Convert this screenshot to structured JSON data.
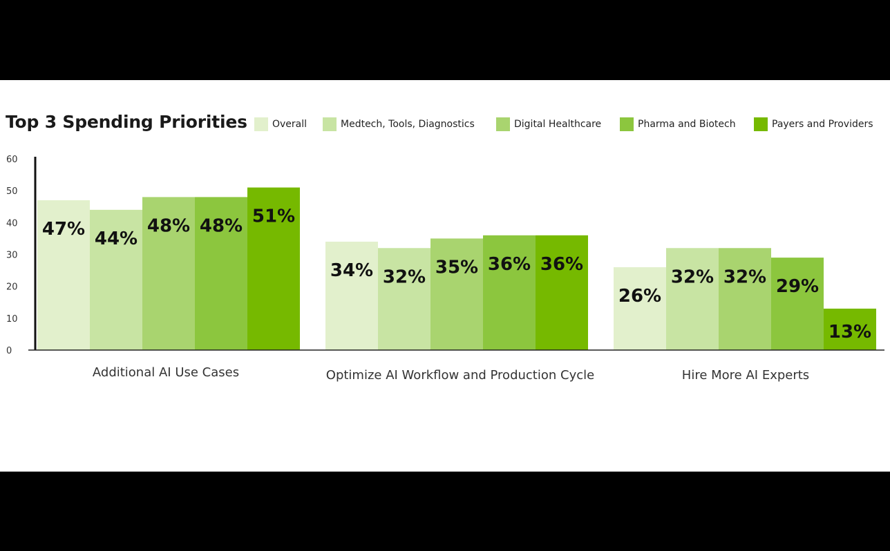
{
  "chart_data": {
    "type": "bar",
    "title": "Top 3 Spending Priorities",
    "categories": [
      "Additional AI Use Cases",
      "Optimize AI Workflow and Production Cycle",
      "Hire More AI Experts"
    ],
    "series": [
      {
        "name": "Overall",
        "values": [
          47,
          34,
          26
        ],
        "color": "#e2f0cc"
      },
      {
        "name": "Medtech, Tools, Diagnostics",
        "values": [
          44,
          32,
          32
        ],
        "color": "#c8e4a3"
      },
      {
        "name": "Digital Healthcare",
        "values": [
          48,
          35,
          32
        ],
        "color": "#a9d46f"
      },
      {
        "name": "Pharma and Biotech",
        "values": [
          48,
          36,
          29
        ],
        "color": "#8cc63e"
      },
      {
        "name": "Payers and Providers",
        "values": [
          51,
          36,
          13
        ],
        "color": "#76b900"
      }
    ],
    "bar_labels": [
      [
        "47%",
        "34%",
        "26%"
      ],
      [
        "44%",
        "32%",
        "32%"
      ],
      [
        "48%",
        "35%",
        "32%"
      ],
      [
        "48%",
        "36%",
        "29%"
      ],
      [
        "51%",
        "36%",
        "13%"
      ]
    ],
    "y_ticks": [
      0,
      10,
      20,
      30,
      40,
      50,
      60
    ],
    "ylim": [
      0,
      60
    ],
    "xlabel": "",
    "ylabel": "",
    "grid": false,
    "legend_position": "top-right"
  }
}
